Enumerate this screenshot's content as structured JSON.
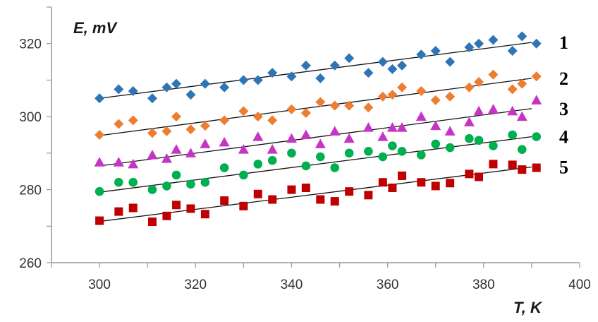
{
  "chart_data": {
    "type": "scatter",
    "title": "",
    "xlabel": "T,  K",
    "ylabel": "E, mV",
    "xlim": [
      290,
      400
    ],
    "ylim": [
      260,
      330
    ],
    "x_ticks": [
      300,
      320,
      340,
      360,
      380,
      400
    ],
    "y_ticks": [
      260,
      280,
      300,
      320
    ],
    "grid": false,
    "legend": "none; series numbered at right end of each trend line",
    "series": [
      {
        "name": "1",
        "color": "#2E75B6",
        "marker": "diamond",
        "trendline": {
          "x": [
            300,
            390
          ],
          "y": [
            305,
            320.3
          ]
        },
        "points": [
          [
            300,
            305
          ],
          [
            304,
            307.5
          ],
          [
            307,
            307
          ],
          [
            311,
            305
          ],
          [
            314,
            308
          ],
          [
            316,
            309
          ],
          [
            319,
            306
          ],
          [
            322,
            309
          ],
          [
            326,
            308
          ],
          [
            330,
            310
          ],
          [
            333,
            310
          ],
          [
            336,
            312
          ],
          [
            340,
            311
          ],
          [
            343,
            314
          ],
          [
            346,
            310.5
          ],
          [
            349,
            314
          ],
          [
            352,
            316
          ],
          [
            356,
            312
          ],
          [
            359,
            315
          ],
          [
            361,
            313
          ],
          [
            363,
            314
          ],
          [
            367,
            317
          ],
          [
            370,
            318
          ],
          [
            373,
            315
          ],
          [
            377,
            319
          ],
          [
            379,
            320
          ],
          [
            382,
            321
          ],
          [
            386,
            318
          ],
          [
            388,
            322
          ],
          [
            391,
            320
          ]
        ]
      },
      {
        "name": "2",
        "color": "#ED7D31",
        "marker": "diamond",
        "trendline": {
          "x": [
            300,
            390
          ],
          "y": [
            294.8,
            310.5
          ]
        },
        "points": [
          [
            300,
            295
          ],
          [
            304,
            298
          ],
          [
            307,
            299
          ],
          [
            311,
            295.5
          ],
          [
            314,
            296
          ],
          [
            316,
            300
          ],
          [
            319,
            296.5
          ],
          [
            322,
            297.5
          ],
          [
            326,
            299
          ],
          [
            330,
            301.5
          ],
          [
            333,
            300
          ],
          [
            336,
            299
          ],
          [
            340,
            302
          ],
          [
            343,
            301
          ],
          [
            346,
            304
          ],
          [
            349,
            303
          ],
          [
            352,
            303
          ],
          [
            356,
            302.5
          ],
          [
            359,
            305.5
          ],
          [
            361,
            306
          ],
          [
            363,
            308
          ],
          [
            367,
            307
          ],
          [
            370,
            304.5
          ],
          [
            373,
            305.5
          ],
          [
            377,
            308
          ],
          [
            379,
            309.5
          ],
          [
            382,
            311.5
          ],
          [
            386,
            307.5
          ],
          [
            388,
            309
          ],
          [
            391,
            311
          ]
        ]
      },
      {
        "name": "3",
        "color": "#C535C5",
        "marker": "triangle",
        "trendline": {
          "x": [
            300,
            390
          ],
          "y": [
            286.5,
            302.2
          ]
        },
        "points": [
          [
            300,
            287.5
          ],
          [
            304,
            287.5
          ],
          [
            307,
            287
          ],
          [
            311,
            289.5
          ],
          [
            314,
            288.5
          ],
          [
            316,
            291
          ],
          [
            319,
            290
          ],
          [
            322,
            292.5
          ],
          [
            326,
            293
          ],
          [
            330,
            291
          ],
          [
            333,
            294.5
          ],
          [
            336,
            291
          ],
          [
            340,
            294
          ],
          [
            343,
            295
          ],
          [
            346,
            292.5
          ],
          [
            349,
            296
          ],
          [
            352,
            294
          ],
          [
            356,
            297
          ],
          [
            359,
            294.5
          ],
          [
            361,
            297
          ],
          [
            363,
            297
          ],
          [
            367,
            300
          ],
          [
            370,
            297.5
          ],
          [
            373,
            296
          ],
          [
            377,
            298.5
          ],
          [
            379,
            301.5
          ],
          [
            382,
            302
          ],
          [
            386,
            301.5
          ],
          [
            388,
            300
          ],
          [
            391,
            304.5
          ]
        ]
      },
      {
        "name": "4",
        "color": "#00B050",
        "marker": "circle",
        "trendline": {
          "x": [
            300,
            390
          ],
          "y": [
            279.3,
            294.5
          ]
        },
        "points": [
          [
            300,
            279.5
          ],
          [
            304,
            282
          ],
          [
            307,
            282
          ],
          [
            311,
            280
          ],
          [
            314,
            281
          ],
          [
            316,
            284
          ],
          [
            319,
            281.5
          ],
          [
            322,
            282
          ],
          [
            326,
            286
          ],
          [
            330,
            284
          ],
          [
            333,
            287
          ],
          [
            336,
            288
          ],
          [
            340,
            290
          ],
          [
            343,
            286.5
          ],
          [
            346,
            289
          ],
          [
            349,
            286
          ],
          [
            352,
            290
          ],
          [
            356,
            290.5
          ],
          [
            359,
            289
          ],
          [
            361,
            292
          ],
          [
            363,
            290.5
          ],
          [
            367,
            289.5
          ],
          [
            370,
            292.5
          ],
          [
            373,
            291.5
          ],
          [
            377,
            294
          ],
          [
            379,
            293.5
          ],
          [
            382,
            292
          ],
          [
            386,
            295
          ],
          [
            388,
            291
          ],
          [
            391,
            294.5
          ]
        ]
      },
      {
        "name": "5",
        "color": "#C00000",
        "marker": "square",
        "trendline": {
          "x": [
            300,
            390
          ],
          "y": [
            271.3,
            286.2
          ]
        },
        "points": [
          [
            300,
            271.5
          ],
          [
            304,
            274
          ],
          [
            307,
            275
          ],
          [
            311,
            271.2
          ],
          [
            314,
            272.8
          ],
          [
            316,
            275.8
          ],
          [
            319,
            274.8
          ],
          [
            322,
            273.3
          ],
          [
            326,
            277
          ],
          [
            330,
            275.5
          ],
          [
            333,
            278.8
          ],
          [
            336,
            277.3
          ],
          [
            340,
            280
          ],
          [
            343,
            280.5
          ],
          [
            346,
            277.3
          ],
          [
            349,
            276.8
          ],
          [
            352,
            279.5
          ],
          [
            356,
            278.5
          ],
          [
            359,
            282
          ],
          [
            361,
            280.5
          ],
          [
            363,
            283.8
          ],
          [
            367,
            282
          ],
          [
            370,
            281
          ],
          [
            373,
            281.8
          ],
          [
            377,
            284.3
          ],
          [
            379,
            283.5
          ],
          [
            382,
            287
          ],
          [
            386,
            286.8
          ],
          [
            388,
            285.5
          ],
          [
            391,
            286
          ]
        ]
      }
    ]
  }
}
